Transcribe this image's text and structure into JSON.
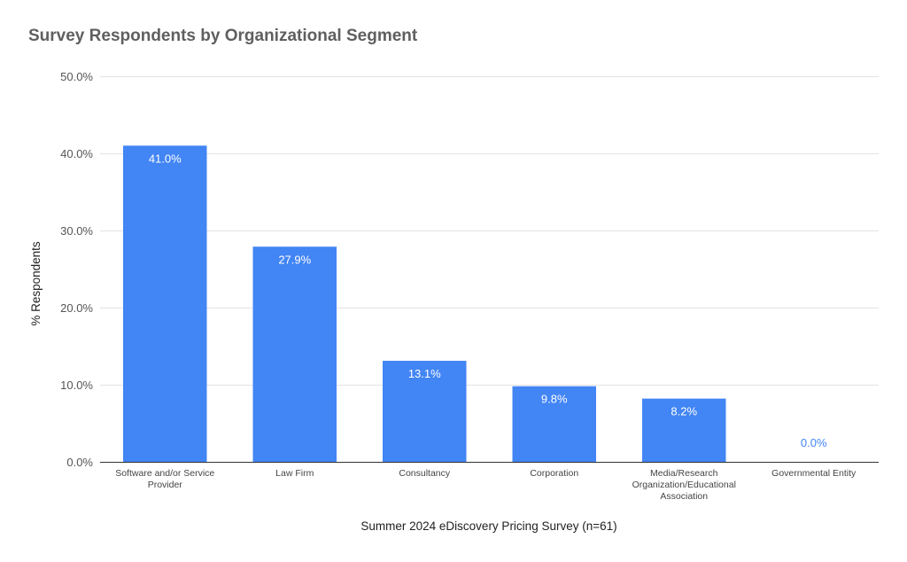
{
  "chart_data": {
    "type": "bar",
    "title": "Survey Respondents by Organizational Segment",
    "xlabel": "Summer 2024 eDiscovery Pricing Survey (n=61)",
    "ylabel": "% Respondents",
    "categories": [
      "Software and/or Service Provider",
      "Law Firm",
      "Consultancy",
      "Corporation",
      "Media/Research Organization/Educational Association",
      "Governmental Entity"
    ],
    "category_lines": [
      [
        "Software and/or Service",
        "Provider"
      ],
      [
        "Law Firm"
      ],
      [
        "Consultancy"
      ],
      [
        "Corporation"
      ],
      [
        "Media/Research",
        "Organization/Educational",
        "Association"
      ],
      [
        "Governmental Entity"
      ]
    ],
    "values": [
      41.0,
      27.9,
      13.1,
      9.8,
      8.2,
      0.0
    ],
    "data_labels": [
      "41.0%",
      "27.9%",
      "13.1%",
      "9.8%",
      "8.2%",
      "0.0%"
    ],
    "y_ticks": [
      0,
      10,
      20,
      30,
      40,
      50
    ],
    "y_tick_labels": [
      "0.0%",
      "10.0%",
      "20.0%",
      "30.0%",
      "40.0%",
      "50.0%"
    ],
    "ylim": [
      0,
      50
    ],
    "grid": true,
    "legend": "none",
    "colors": {
      "bar": "#4285f4",
      "label_inside": "#ffffff",
      "label_outside": "#4285f4"
    }
  }
}
